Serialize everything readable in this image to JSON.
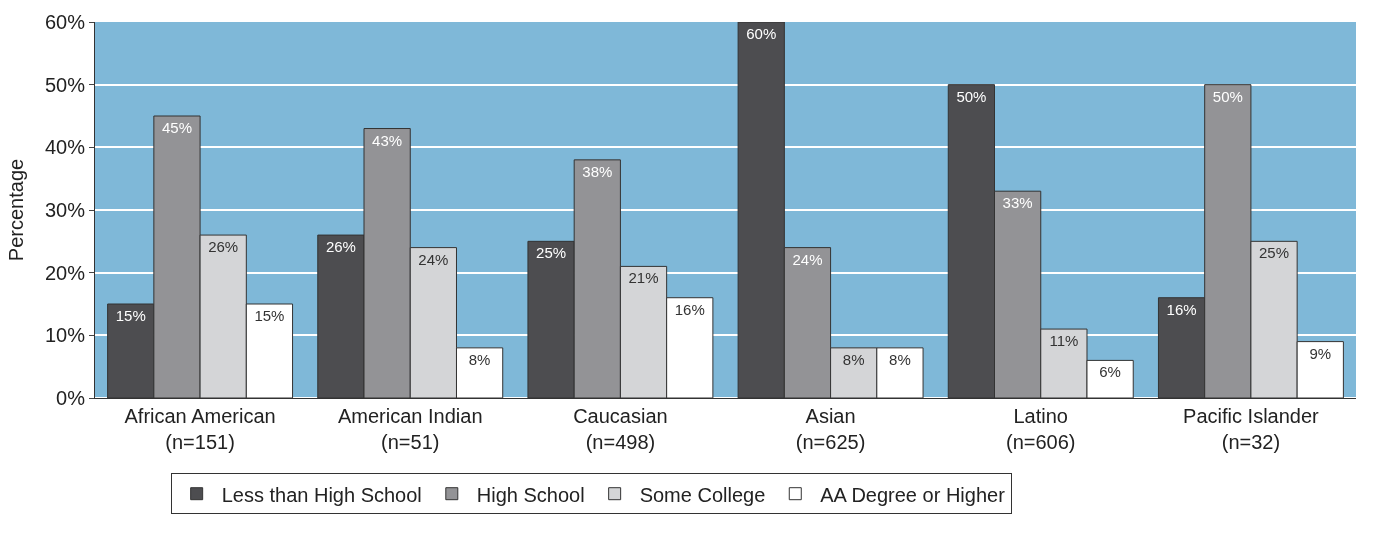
{
  "chart_data": {
    "type": "bar",
    "ylabel": "Percentage",
    "categories": [
      "African American\n(n=151)",
      "American Indian\n(n=51)",
      "Caucasian\n(n=498)",
      "Asian\n(n=625)",
      "Latino\n(n=606)",
      "Pacific Islander\n(n=32)"
    ],
    "series": [
      {
        "name": "Less than High School",
        "color": "#4d4d50",
        "values": [
          15,
          26,
          25,
          60,
          50,
          16
        ],
        "value_labels": [
          "15%",
          "26%",
          "25%",
          "60%",
          "50%",
          "16%"
        ]
      },
      {
        "name": "High School",
        "color": "#939396",
        "values": [
          45,
          43,
          38,
          24,
          33,
          50
        ],
        "value_labels": [
          "45%",
          "43%",
          "38%",
          "24%",
          "33%",
          "50%"
        ]
      },
      {
        "name": "Some College",
        "color": "#d4d5d7",
        "values": [
          26,
          24,
          21,
          8,
          11,
          25
        ],
        "value_labels": [
          "26%",
          "24%",
          "21%",
          "8%",
          "11%",
          "25%"
        ]
      },
      {
        "name": "AA Degree or Higher",
        "color": "#ffffff",
        "values": [
          15,
          8,
          16,
          8,
          6,
          9
        ],
        "value_labels": [
          "15%",
          "8%",
          "16%",
          "8%",
          "6%",
          "9%"
        ]
      }
    ],
    "ylim": [
      0,
      60
    ],
    "yticks": [
      {
        "value": 0,
        "label": "0%"
      },
      {
        "value": 10,
        "label": "10%"
      },
      {
        "value": 20,
        "label": "20%"
      },
      {
        "value": 30,
        "label": "30%"
      },
      {
        "value": 40,
        "label": "40%"
      },
      {
        "value": 50,
        "label": "50%"
      },
      {
        "value": 60,
        "label": "60%"
      }
    ],
    "grid": "y",
    "legend": "bottom"
  }
}
